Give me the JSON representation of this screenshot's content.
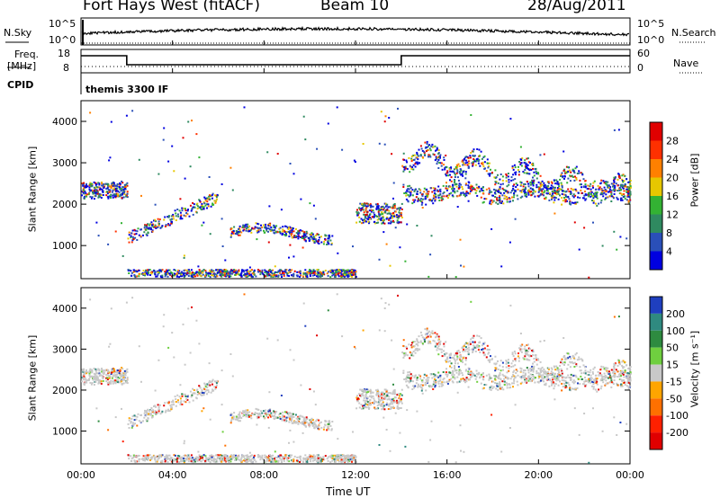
{
  "header": {
    "station": "Fort Hays West (fitACF)",
    "beam": "Beam 10",
    "date": "28/Aug/2011"
  },
  "top_panels": {
    "nsky_label": "N.Sky",
    "nsearch_label": "N.Search",
    "tick_1e5_left": "10^5",
    "tick_1e0_left": "10^0",
    "tick_1e5_right": "10^5",
    "tick_1e0_right": "10^0",
    "freq_label_1": "Freq.",
    "freq_label_2": "[MHz]",
    "nave_label": "Nave",
    "freq_tick_18": "18",
    "freq_tick_8": "8",
    "nave_tick_60": "60",
    "nave_tick_0": "0",
    "cpid_label": "CPID",
    "cpid_text": "themis 3300 IF"
  },
  "chart_data": [
    {
      "type": "heatmap",
      "name": "power",
      "ylabel": "Slant Range [km]",
      "ylim": [
        200,
        4500
      ],
      "yticks": [
        "1000",
        "2000",
        "3000",
        "4000"
      ],
      "colorbar_label": "Power [dB]",
      "colorbar_ticks": [
        "4",
        "8",
        "12",
        "16",
        "20",
        "24",
        "28"
      ],
      "colors": [
        "#0000e0",
        "#2a4fb8",
        "#2f8a60",
        "#33b233",
        "#e6c700",
        "#ff8000",
        "#ff3000",
        "#e00000"
      ]
    },
    {
      "type": "heatmap",
      "name": "velocity",
      "ylabel": "Slant Range [km]",
      "ylim": [
        200,
        4500
      ],
      "yticks": [
        "1000",
        "2000",
        "3000",
        "4000"
      ],
      "colorbar_label": "Velocity [m s⁻¹]",
      "colorbar_ticks": [
        "200",
        "100",
        "50",
        "15",
        "-15",
        "-50",
        "-100",
        "-200"
      ],
      "colors": [
        "#1f3fbf",
        "#2f8a80",
        "#2e8b40",
        "#6fcf3f",
        "#c8c8c8",
        "#ffa500",
        "#ff7000",
        "#ff2000",
        "#e00000"
      ]
    }
  ],
  "xaxis": {
    "ticks": [
      "00:00",
      "04:00",
      "08:00",
      "12:00",
      "16:00",
      "20:00",
      "00:00"
    ],
    "label": "Time UT"
  }
}
